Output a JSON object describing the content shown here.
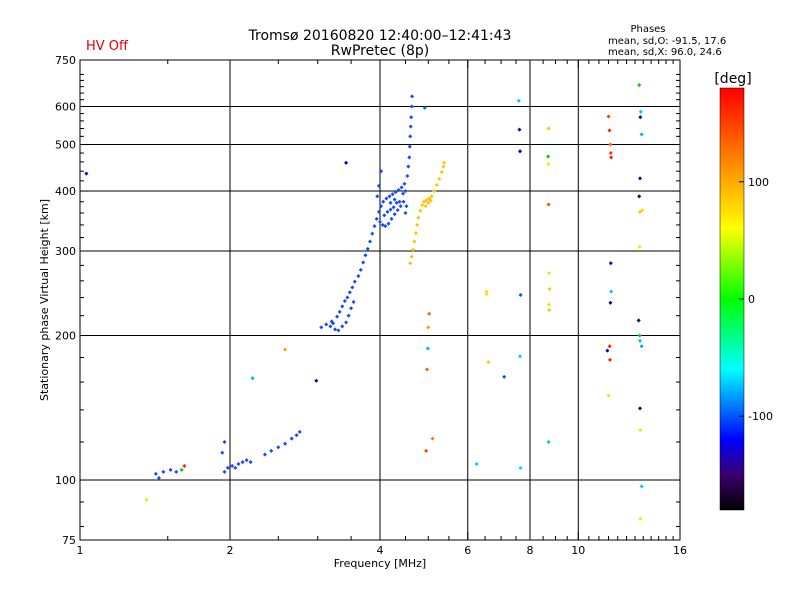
{
  "chart_data": {
    "type": "scatter",
    "title": "Tromsø 20160820 12:40:00–12:41:43",
    "subtitle": "RwPretec (8p)",
    "status_label": "HV Off",
    "xlabel": "Frequency [MHz]",
    "ylabel": "Stationary phase Virtual Height [km]",
    "x_scale": "log2",
    "y_scale": "log",
    "xlim": [
      1,
      16
    ],
    "ylim": [
      75,
      750
    ],
    "x_ticks": [
      {
        "value": 1,
        "label": "1"
      },
      {
        "value": 2,
        "label": "2"
      },
      {
        "value": 4,
        "label": "4"
      },
      {
        "value": 6,
        "label": "6"
      },
      {
        "value": 8,
        "label": "8"
      },
      {
        "value": 10,
        "label": "10"
      },
      {
        "value": 16,
        "label": "16"
      }
    ],
    "x_gridlines": [
      2,
      4,
      6,
      8,
      10
    ],
    "y_ticks": [
      {
        "value": 75,
        "label": "75"
      },
      {
        "value": 100,
        "label": "100"
      },
      {
        "value": 200,
        "label": "200"
      },
      {
        "value": 300,
        "label": "300"
      },
      {
        "value": 400,
        "label": "400"
      },
      {
        "value": 500,
        "label": "500"
      },
      {
        "value": 600,
        "label": "600"
      },
      {
        "value": 750,
        "label": "750"
      }
    ],
    "y_gridlines": [
      100,
      200,
      300,
      400,
      500,
      600
    ],
    "phase_info": {
      "title": "Phases",
      "line_o": "mean, sd,O:  -91.5, 17.6",
      "line_x": "mean, sd,X:   96.0, 24.6"
    },
    "colorbar": {
      "label": "[deg]",
      "range": [
        -180,
        180
      ],
      "ticks": [
        {
          "value": 100,
          "label": "100"
        },
        {
          "value": 0,
          "label": "0"
        },
        {
          "value": -100,
          "label": "-100"
        }
      ],
      "stops": [
        {
          "value": -180,
          "color": "#000000"
        },
        {
          "value": -150,
          "color": "#3c006e"
        },
        {
          "value": -120,
          "color": "#0000ff"
        },
        {
          "value": -60,
          "color": "#00ffff"
        },
        {
          "value": 0,
          "color": "#00ff00"
        },
        {
          "value": 60,
          "color": "#ffff00"
        },
        {
          "value": 120,
          "color": "#ff8000"
        },
        {
          "value": 180,
          "color": "#ff0000"
        }
      ]
    },
    "series": [
      {
        "name": "O-mode trace",
        "phase": -105,
        "color": "#1848ff",
        "points": [
          [
            1.42,
            103
          ],
          [
            1.44,
            101
          ],
          [
            1.47,
            104
          ],
          [
            1.52,
            105
          ],
          [
            1.56,
            104
          ],
          [
            1.95,
            104
          ],
          [
            1.98,
            106
          ],
          [
            2.02,
            107
          ],
          [
            2.05,
            106
          ],
          [
            2.08,
            108
          ],
          [
            2.12,
            109
          ],
          [
            2.16,
            110
          ],
          [
            2.2,
            109
          ],
          [
            2.35,
            113
          ],
          [
            2.42,
            115
          ],
          [
            2.5,
            117
          ],
          [
            2.58,
            119
          ],
          [
            2.66,
            122
          ],
          [
            2.72,
            124
          ],
          [
            2.76,
            126
          ],
          [
            1.93,
            114
          ],
          [
            1.95,
            120
          ],
          [
            3.05,
            208
          ],
          [
            3.12,
            211
          ],
          [
            3.2,
            214
          ],
          [
            3.28,
            219
          ],
          [
            3.32,
            224
          ],
          [
            3.36,
            230
          ],
          [
            3.4,
            236
          ],
          [
            3.44,
            240
          ],
          [
            3.48,
            246
          ],
          [
            3.52,
            252
          ],
          [
            3.56,
            259
          ],
          [
            3.62,
            266
          ],
          [
            3.66,
            274
          ],
          [
            3.7,
            284
          ],
          [
            3.74,
            294
          ],
          [
            3.78,
            303
          ],
          [
            3.82,
            314
          ],
          [
            3.86,
            326
          ],
          [
            3.9,
            338
          ],
          [
            3.94,
            350
          ],
          [
            3.98,
            362
          ],
          [
            4.02,
            372
          ],
          [
            4.06,
            380
          ],
          [
            4.12,
            386
          ],
          [
            4.18,
            390
          ],
          [
            4.24,
            394
          ],
          [
            4.3,
            398
          ],
          [
            4.36,
            402
          ],
          [
            4.42,
            407
          ],
          [
            4.48,
            414
          ],
          [
            4.54,
            430
          ],
          [
            4.56,
            450
          ],
          [
            4.58,
            470
          ],
          [
            4.59,
            495
          ],
          [
            4.6,
            520
          ],
          [
            4.61,
            545
          ],
          [
            4.62,
            570
          ],
          [
            4.63,
            600
          ],
          [
            4.64,
            630
          ],
          [
            3.25,
            206
          ],
          [
            3.3,
            205
          ],
          [
            3.36,
            209
          ],
          [
            3.42,
            213
          ],
          [
            3.46,
            220
          ],
          [
            3.5,
            228
          ],
          [
            3.54,
            235
          ],
          [
            3.22,
            212
          ],
          [
            3.18,
            209
          ],
          [
            4.0,
            345
          ],
          [
            4.05,
            340
          ],
          [
            4.1,
            338
          ],
          [
            4.16,
            342
          ],
          [
            4.22,
            350
          ],
          [
            4.28,
            358
          ],
          [
            4.34,
            365
          ],
          [
            4.4,
            372
          ],
          [
            4.46,
            380
          ],
          [
            4.5,
            360
          ],
          [
            4.52,
            372
          ],
          [
            4.08,
            356
          ],
          [
            4.14,
            362
          ],
          [
            4.2,
            366
          ],
          [
            4.26,
            370
          ],
          [
            3.95,
            390
          ],
          [
            3.98,
            410
          ],
          [
            4.02,
            440
          ],
          [
            4.45,
            395
          ],
          [
            4.5,
            400
          ],
          [
            4.38,
            380
          ],
          [
            4.32,
            378
          ],
          [
            4.28,
            384
          ],
          [
            4.2,
            378
          ]
        ]
      },
      {
        "name": "X-mode trace",
        "phase": 110,
        "color": "#ffc400",
        "points": [
          [
            4.6,
            283
          ],
          [
            4.63,
            292
          ],
          [
            4.66,
            302
          ],
          [
            4.69,
            314
          ],
          [
            4.72,
            327
          ],
          [
            4.75,
            340
          ],
          [
            4.78,
            352
          ],
          [
            4.82,
            364
          ],
          [
            4.86,
            374
          ],
          [
            4.9,
            380
          ],
          [
            4.96,
            383
          ],
          [
            5.02,
            386
          ],
          [
            5.08,
            390
          ],
          [
            5.14,
            400
          ],
          [
            5.2,
            412
          ],
          [
            5.26,
            424
          ],
          [
            5.32,
            438
          ],
          [
            5.36,
            450
          ],
          [
            5.38,
            458
          ],
          [
            4.94,
            372
          ],
          [
            5.0,
            378
          ],
          [
            5.06,
            382
          ]
        ]
      },
      {
        "name": "Scattered echoes",
        "phase": null,
        "points": [
          [
            1.03,
            435,
            "#0000c8"
          ],
          [
            1.36,
            91,
            "#e8e800"
          ],
          [
            1.6,
            105,
            "#00d000"
          ],
          [
            1.62,
            107,
            "#ff2000"
          ],
          [
            2.22,
            163,
            "#00b0ff"
          ],
          [
            2.58,
            187,
            "#ffa000"
          ],
          [
            2.98,
            161,
            "#0000c8"
          ],
          [
            3.42,
            458,
            "#0000c8"
          ],
          [
            4.92,
            596,
            "#1060ff"
          ],
          [
            4.95,
            115,
            "#ff4000"
          ],
          [
            4.97,
            170,
            "#ff6000"
          ],
          [
            4.99,
            188,
            "#00b0ff"
          ],
          [
            5.0,
            208,
            "#ffa000"
          ],
          [
            5.02,
            222,
            "#ff6000"
          ],
          [
            5.1,
            122,
            "#ff8000"
          ],
          [
            6.55,
            247,
            "#ffe000"
          ],
          [
            6.55,
            244,
            "#e8e800"
          ],
          [
            6.6,
            176,
            "#ffc400"
          ],
          [
            6.25,
            108,
            "#00c0ff"
          ],
          [
            7.1,
            164,
            "#0050ff"
          ],
          [
            7.6,
            617,
            "#00c8ff"
          ],
          [
            7.62,
            537,
            "#000090"
          ],
          [
            7.64,
            484,
            "#0000a0"
          ],
          [
            7.66,
            243,
            "#1050ff"
          ],
          [
            7.64,
            181,
            "#00c8ff"
          ],
          [
            7.66,
            106,
            "#00d8ff"
          ],
          [
            8.72,
            540,
            "#ffc800"
          ],
          [
            8.7,
            472,
            "#00d000"
          ],
          [
            8.71,
            455,
            "#ffe000"
          ],
          [
            8.72,
            375,
            "#ff5000"
          ],
          [
            8.74,
            270,
            "#ffe000"
          ],
          [
            8.76,
            250,
            "#ffc800"
          ],
          [
            8.73,
            232,
            "#e8e800"
          ],
          [
            8.74,
            226,
            "#ffc400"
          ],
          [
            8.72,
            120,
            "#00c8c8"
          ],
          [
            11.5,
            572,
            "#ff4000"
          ],
          [
            11.55,
            535,
            "#ff2000"
          ],
          [
            11.6,
            500,
            "#ff6000"
          ],
          [
            11.62,
            480,
            "#ff3000"
          ],
          [
            11.64,
            470,
            "#ff2000"
          ],
          [
            11.62,
            283,
            "#000090"
          ],
          [
            11.64,
            247,
            "#00c8ff"
          ],
          [
            11.6,
            234,
            "#0000b0"
          ],
          [
            11.44,
            186,
            "#000090"
          ],
          [
            11.56,
            190,
            "#ff2000"
          ],
          [
            11.58,
            178,
            "#ff2000"
          ],
          [
            11.5,
            150,
            "#ffe000"
          ],
          [
            13.25,
            665,
            "#00d000"
          ],
          [
            13.35,
            585,
            "#00c8ff"
          ],
          [
            13.32,
            570,
            "#000090"
          ],
          [
            13.4,
            525,
            "#00b0ff"
          ],
          [
            13.3,
            425,
            "#000080"
          ],
          [
            13.25,
            390,
            "#200040"
          ],
          [
            13.45,
            365,
            "#ffe000"
          ],
          [
            13.3,
            362,
            "#ffc400"
          ],
          [
            13.28,
            306,
            "#e8e800"
          ],
          [
            13.22,
            215,
            "#000080"
          ],
          [
            13.28,
            200,
            "#00d000"
          ],
          [
            13.3,
            195,
            "#00c8c8"
          ],
          [
            13.4,
            190,
            "#00a0ff"
          ],
          [
            13.3,
            141,
            "#000060"
          ],
          [
            13.32,
            127,
            "#ffe000"
          ],
          [
            13.4,
            97,
            "#00c8ff"
          ],
          [
            13.32,
            83,
            "#ffe000"
          ]
        ]
      }
    ]
  }
}
